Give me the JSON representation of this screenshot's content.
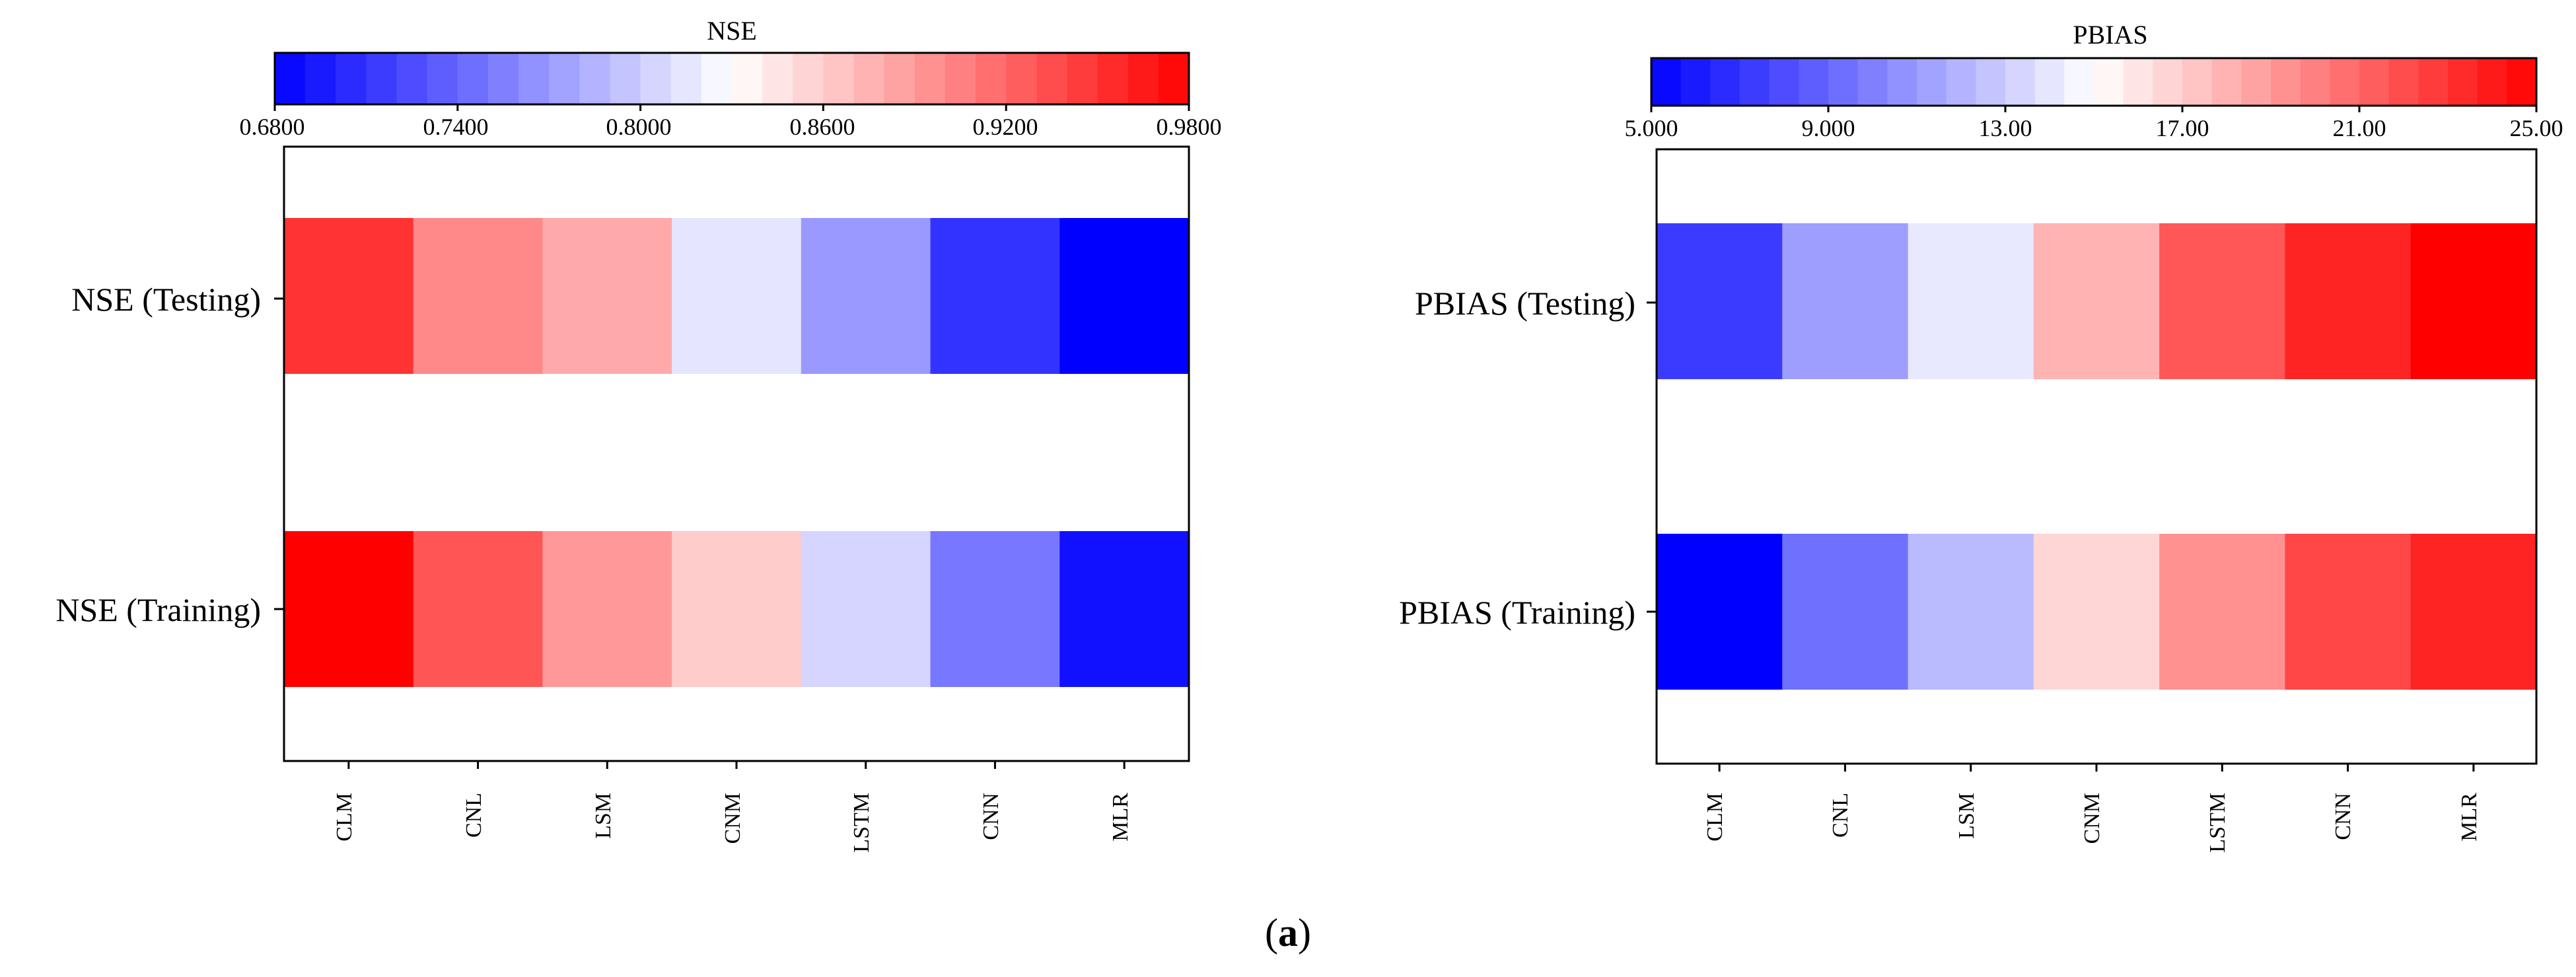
{
  "caption": {
    "open": "(",
    "letter": "a",
    "close": ")"
  },
  "chart_data": [
    {
      "type": "heatmap",
      "title": "NSE",
      "colorbar": {
        "min": 0.68,
        "max": 0.98,
        "ticks": [
          "0.6800",
          "0.7400",
          "0.8000",
          "0.8600",
          "0.9200",
          "0.9800"
        ],
        "low_color": "#0000ff",
        "mid_color": "#ffffff",
        "high_color": "#ff0000",
        "steps": 30
      },
      "categories": [
        "CLM",
        "CNL",
        "LSM",
        "CNM",
        "LSTM",
        "CNN",
        "MLR"
      ],
      "rows": [
        {
          "label": "NSE (Testing)",
          "values": [
            0.95,
            0.9,
            0.88,
            0.815,
            0.77,
            0.71,
            0.68
          ]
        },
        {
          "label": "NSE (Training)",
          "values": [
            0.98,
            0.93,
            0.89,
            0.86,
            0.805,
            0.75,
            0.69
          ]
        }
      ]
    },
    {
      "type": "heatmap",
      "title": "PBIAS",
      "colorbar": {
        "min": 5.0,
        "max": 25.0,
        "ticks": [
          "5.000",
          "9.000",
          "13.00",
          "17.00",
          "21.00",
          "25.00"
        ],
        "low_color": "#0000ff",
        "mid_color": "#ffffff",
        "high_color": "#ff0000",
        "steps": 30
      },
      "categories": [
        "CLM",
        "CNL",
        "LSM",
        "CNM",
        "LSTM",
        "CNN",
        "MLR"
      ],
      "rows": [
        {
          "label": "PBIAS (Testing)",
          "values": [
            7.3,
            11.2,
            14.1,
            18.0,
            21.6,
            23.6,
            25.0
          ]
        },
        {
          "label": "PBIAS (Training)",
          "values": [
            5.0,
            9.4,
            12.3,
            16.6,
            19.3,
            22.2,
            23.6
          ]
        }
      ]
    }
  ]
}
